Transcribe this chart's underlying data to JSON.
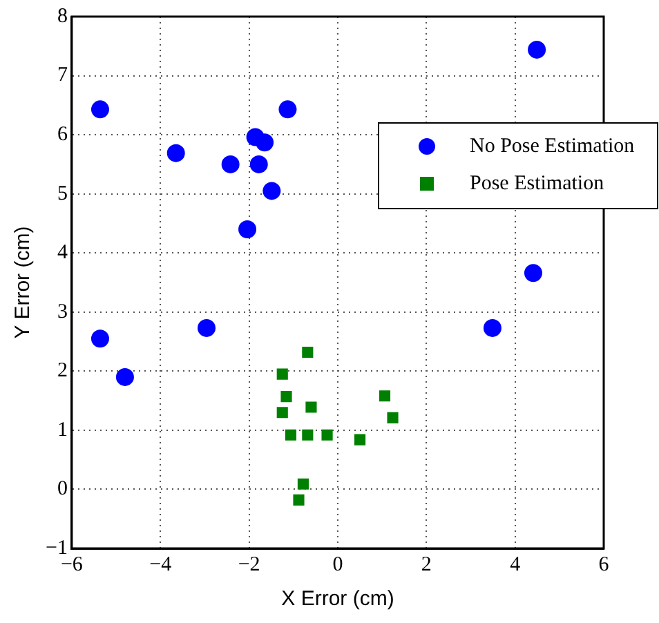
{
  "chart_data": {
    "type": "scatter",
    "xlabel": "X Error (cm)",
    "ylabel": "Y Error (cm)",
    "xlim": [
      -6,
      6
    ],
    "ylim": [
      -1,
      8
    ],
    "xticks": [
      -6,
      -4,
      -2,
      0,
      2,
      4,
      6
    ],
    "yticks": [
      -1,
      0,
      1,
      2,
      3,
      4,
      5,
      6,
      7,
      8
    ],
    "grid": true,
    "legend": "right",
    "series": [
      {
        "name": "No Pose Estimation",
        "color": "#0000ff",
        "marker": "circle",
        "x": [
          -5.36,
          4.49,
          -3.65,
          -2.42,
          -1.86,
          -1.65,
          -1.78,
          -1.13,
          -1.49,
          -2.04,
          4.41,
          -5.36,
          -4.8,
          -2.96,
          3.49
        ],
        "values": [
          6.43,
          7.44,
          5.69,
          5.5,
          5.96,
          5.87,
          5.5,
          6.43,
          5.05,
          4.4,
          3.66,
          2.55,
          1.9,
          2.73,
          2.73
        ]
      },
      {
        "name": "Pose Estimation",
        "color": "#008000",
        "marker": "square",
        "x": [
          -0.68,
          -1.25,
          -1.16,
          -0.6,
          -1.25,
          -1.06,
          -0.68,
          -0.24,
          0.5,
          1.06,
          1.24,
          -0.78,
          -0.88
        ],
        "values": [
          2.32,
          1.95,
          1.57,
          1.39,
          1.3,
          0.92,
          0.92,
          0.92,
          0.84,
          1.58,
          1.21,
          0.09,
          -0.18
        ]
      }
    ]
  }
}
